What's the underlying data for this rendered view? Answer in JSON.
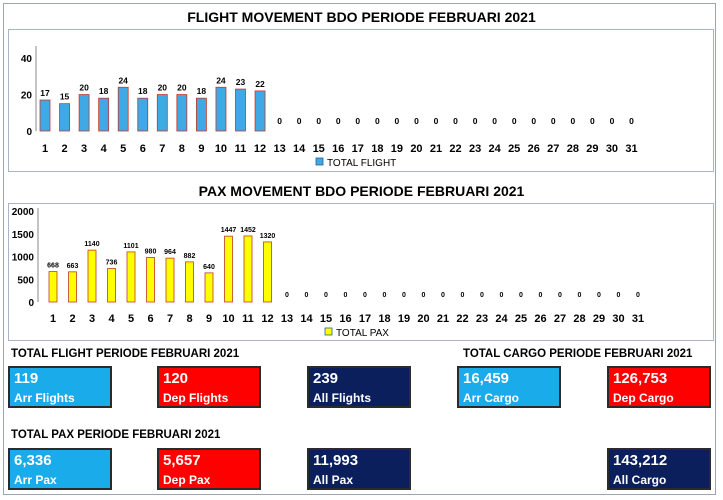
{
  "flight_chart_title": "FLIGHT MOVEMENT BDO PERIODE FEBRUARI 2021",
  "pax_chart_title": "PAX MOVEMENT BDO PERIODE FEBRUARI 2021",
  "chart_data": [
    {
      "type": "bar",
      "title": "FLIGHT MOVEMENT BDO PERIODE FEBRUARI 2021",
      "categories": [
        "1",
        "2",
        "3",
        "4",
        "5",
        "6",
        "7",
        "8",
        "9",
        "10",
        "11",
        "12",
        "13",
        "14",
        "15",
        "16",
        "17",
        "18",
        "19",
        "20",
        "21",
        "22",
        "23",
        "24",
        "25",
        "26",
        "27",
        "28",
        "29",
        "30",
        "31"
      ],
      "series": [
        {
          "name": "TOTAL FLIGHT",
          "values": [
            17,
            15,
            20,
            18,
            24,
            18,
            20,
            20,
            18,
            24,
            23,
            22,
            0,
            0,
            0,
            0,
            0,
            0,
            0,
            0,
            0,
            0,
            0,
            0,
            0,
            0,
            0,
            0,
            0,
            0,
            0
          ]
        }
      ],
      "yticks": [
        0,
        20,
        40
      ],
      "ylim": [
        0,
        45
      ],
      "legend": "bottom",
      "grid": false,
      "colors": {
        "fill": "#3fa9e6",
        "edge": "#c0392b"
      }
    },
    {
      "type": "bar",
      "title": "PAX MOVEMENT BDO PERIODE FEBRUARI 2021",
      "categories": [
        "1",
        "2",
        "3",
        "4",
        "5",
        "6",
        "7",
        "8",
        "9",
        "10",
        "11",
        "12",
        "13",
        "14",
        "15",
        "16",
        "17",
        "18",
        "19",
        "20",
        "21",
        "22",
        "23",
        "24",
        "25",
        "26",
        "27",
        "28",
        "29",
        "30",
        "31"
      ],
      "series": [
        {
          "name": "TOTAL PAX",
          "values": [
            668,
            663,
            1140,
            736,
            1101,
            980,
            964,
            882,
            640,
            1447,
            1452,
            1320,
            0,
            0,
            0,
            0,
            0,
            0,
            0,
            0,
            0,
            0,
            0,
            0,
            0,
            0,
            0,
            0,
            0,
            0,
            0
          ]
        }
      ],
      "yticks": [
        0,
        500,
        1000,
        1500,
        2000
      ],
      "ylim": [
        0,
        2000
      ],
      "legend": "bottom",
      "grid": false,
      "colors": {
        "fill": "#ffff00",
        "edge": "#c0392b"
      }
    }
  ],
  "summary": {
    "flight_section_label": "TOTAL FLIGHT PERIODE FEBRUARI 2021",
    "cargo_section_label": "TOTAL CARGO  PERIODE FEBRUARI 2021",
    "pax_section_label": "TOTAL PAX PERIODE FEBRUARI 2021",
    "arr_flights": {
      "value": "119",
      "label": "Arr Flights"
    },
    "dep_flights": {
      "value": "120",
      "label": "Dep Flights"
    },
    "all_flights": {
      "value": "239",
      "label": "All Flights"
    },
    "arr_cargo": {
      "value": "16,459",
      "label": "Arr Cargo"
    },
    "dep_cargo": {
      "value": "126,753",
      "label": "Dep Cargo"
    },
    "arr_pax": {
      "value": "6,336",
      "label": "Arr Pax"
    },
    "dep_pax": {
      "value": "5,657",
      "label": "Dep Pax"
    },
    "all_pax": {
      "value": "11,993",
      "label": "All Pax"
    },
    "all_cargo": {
      "value": "143,212",
      "label": "All Cargo"
    }
  },
  "colors": {
    "arr": "#1aabeb",
    "dep": "#ff0000",
    "all": "#0b1f5c"
  }
}
